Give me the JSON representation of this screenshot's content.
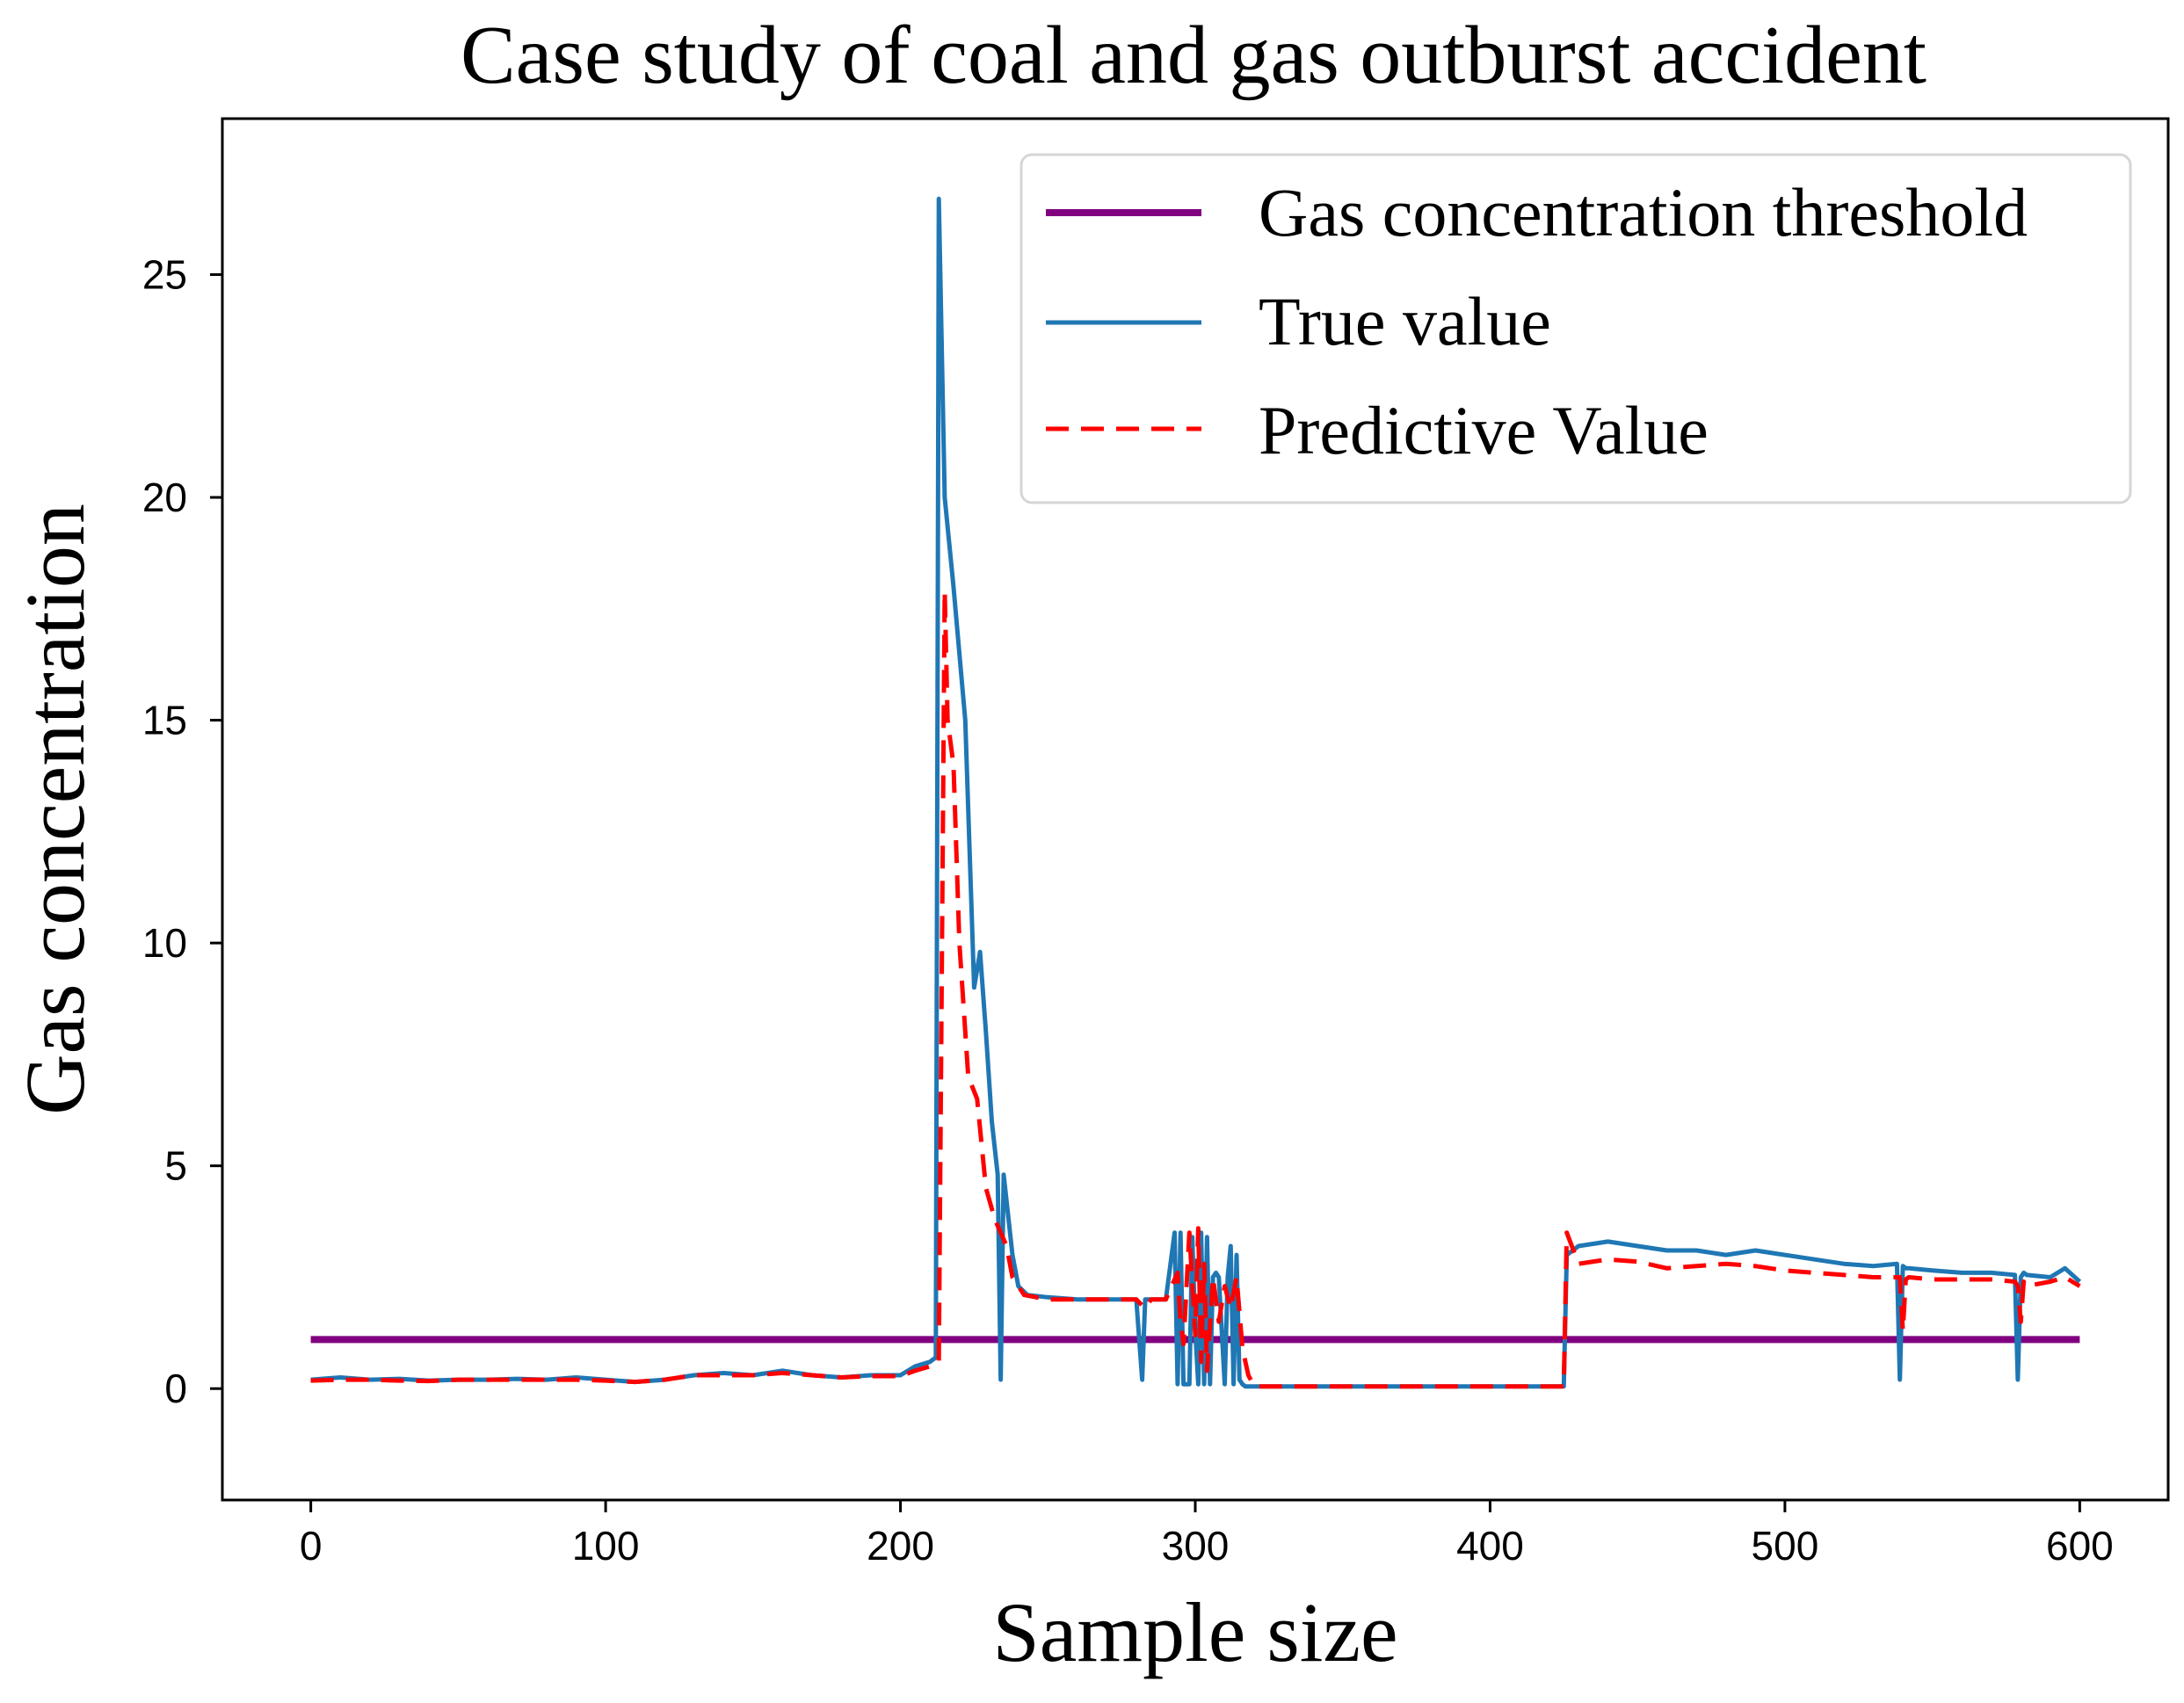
{
  "chart_data": {
    "type": "line",
    "title": "Case study of coal and gas outburst accident",
    "xlabel": "Sample size",
    "ylabel": "Gas concentration",
    "xlim": [
      -30,
      630
    ],
    "ylim": [
      -2.5,
      28.5
    ],
    "xticks": [
      0,
      100,
      200,
      300,
      400,
      500,
      600
    ],
    "yticks": [
      0,
      5,
      10,
      15,
      20,
      25
    ],
    "grid": false,
    "legend_position": "top-right",
    "series": [
      {
        "name": "Gas concentration threshold",
        "color": "#800080",
        "style": "solid",
        "x": [
          0,
          600
        ],
        "y": [
          1.1,
          1.1
        ]
      },
      {
        "name": "True value",
        "color": "#1f77b4",
        "style": "solid",
        "x": [
          0,
          10,
          20,
          30,
          40,
          50,
          60,
          70,
          80,
          90,
          100,
          110,
          120,
          130,
          140,
          150,
          160,
          170,
          180,
          190,
          200,
          205,
          210,
          212,
          213,
          215,
          218,
          222,
          225,
          227,
          229,
          231,
          233,
          234,
          235,
          238,
          240,
          243,
          250,
          260,
          270,
          280,
          282,
          283,
          284,
          290,
          293,
          294,
          295,
          296,
          298,
          299,
          300,
          301,
          302,
          303,
          304,
          305,
          306,
          307,
          308,
          310,
          311,
          312,
          313,
          314,
          315,
          316,
          317,
          320,
          330,
          350,
          380,
          400,
          420,
          425,
          426,
          430,
          440,
          450,
          460,
          470,
          480,
          490,
          500,
          510,
          520,
          530,
          538,
          539,
          540,
          541,
          542,
          550,
          560,
          570,
          578,
          579,
          580,
          581,
          582,
          590,
          595,
          600
        ],
        "y": [
          0.2,
          0.25,
          0.2,
          0.22,
          0.18,
          0.2,
          0.2,
          0.22,
          0.2,
          0.25,
          0.2,
          0.15,
          0.2,
          0.3,
          0.35,
          0.3,
          0.4,
          0.3,
          0.25,
          0.3,
          0.3,
          0.5,
          0.6,
          0.7,
          26.7,
          20,
          18,
          15,
          9,
          9.8,
          8,
          6,
          4.8,
          0.2,
          4.8,
          3,
          2.3,
          2.1,
          2.05,
          2.0,
          2.0,
          2.0,
          0.2,
          2.0,
          2.0,
          2.0,
          3.5,
          0.1,
          3.5,
          0.1,
          0.1,
          3.4,
          1.3,
          0.1,
          3.5,
          0.1,
          3.4,
          0.1,
          2.5,
          2.6,
          2.5,
          0.1,
          2.5,
          3.2,
          0.1,
          3.0,
          0.2,
          0.1,
          0.05,
          0.05,
          0.05,
          0.05,
          0.05,
          0.05,
          0.05,
          0.05,
          3.0,
          3.2,
          3.3,
          3.2,
          3.1,
          3.1,
          3.0,
          3.1,
          3.0,
          2.9,
          2.8,
          2.75,
          2.8,
          0.2,
          2.75,
          2.7,
          2.7,
          2.65,
          2.6,
          2.6,
          2.55,
          0.2,
          2.5,
          2.6,
          2.55,
          2.5,
          2.7,
          2.4
        ]
      },
      {
        "name": "Predictive Value",
        "color": "#ff0000",
        "style": "dashed",
        "x": [
          0,
          10,
          20,
          30,
          40,
          50,
          60,
          70,
          80,
          90,
          100,
          110,
          120,
          130,
          140,
          150,
          160,
          170,
          180,
          190,
          200,
          205,
          210,
          213,
          215,
          216,
          218,
          220,
          223,
          226,
          229,
          232,
          234,
          236,
          238,
          242,
          250,
          260,
          270,
          280,
          283,
          285,
          290,
          294,
          295,
          296,
          298,
          300,
          301,
          302,
          303,
          304,
          306,
          308,
          310,
          312,
          314,
          316,
          318,
          320,
          330,
          350,
          380,
          400,
          420,
          425,
          426,
          430,
          440,
          450,
          460,
          470,
          480,
          490,
          500,
          510,
          520,
          530,
          539,
          540,
          541,
          542,
          550,
          560,
          570,
          578,
          579,
          580,
          581,
          582,
          590,
          595,
          600
        ],
        "y": [
          0.18,
          0.2,
          0.2,
          0.18,
          0.17,
          0.2,
          0.2,
          0.2,
          0.2,
          0.2,
          0.18,
          0.15,
          0.2,
          0.3,
          0.3,
          0.3,
          0.35,
          0.3,
          0.25,
          0.28,
          0.28,
          0.4,
          0.5,
          0.6,
          17.9,
          15,
          14,
          10,
          7,
          6.5,
          4.5,
          3.8,
          3.5,
          3.2,
          2.5,
          2.1,
          2.0,
          2.0,
          2.0,
          2.0,
          1.8,
          2.0,
          2.0,
          2.6,
          1.5,
          1.0,
          3.5,
          1.2,
          3.6,
          0.6,
          2.8,
          0.4,
          2.5,
          1.5,
          2.3,
          1.8,
          2.5,
          0.9,
          0.3,
          0.05,
          0.05,
          0.05,
          0.05,
          0.05,
          0.05,
          0.05,
          3.5,
          2.8,
          2.9,
          2.85,
          2.7,
          2.75,
          2.8,
          2.75,
          2.65,
          2.6,
          2.55,
          2.5,
          2.5,
          1.3,
          2.45,
          2.5,
          2.45,
          2.45,
          2.45,
          2.4,
          2.3,
          1.5,
          2.4,
          2.3,
          2.4,
          2.5,
          2.3
        ]
      }
    ]
  }
}
